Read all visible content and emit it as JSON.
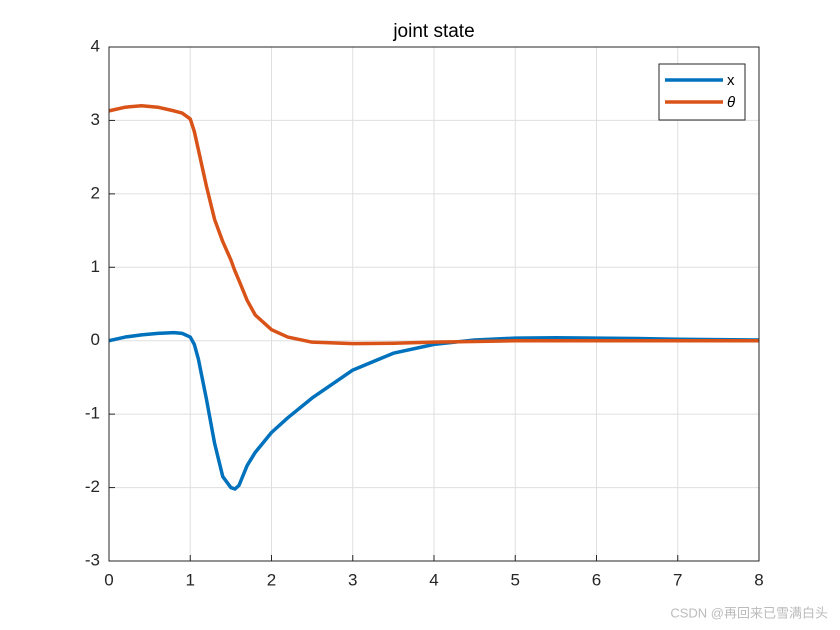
{
  "chart_data": {
    "type": "line",
    "title": "joint state",
    "x": [
      0,
      0.2,
      0.4,
      0.6,
      0.8,
      0.9,
      1.0,
      1.05,
      1.1,
      1.2,
      1.3,
      1.4,
      1.5,
      1.55,
      1.6,
      1.7,
      1.8,
      2.0,
      2.2,
      2.5,
      3,
      3.5,
      4,
      4.5,
      5,
      5.5,
      6,
      6.5,
      7,
      7.5,
      8
    ],
    "series": [
      {
        "name": "x",
        "color": "#0072BD",
        "values": [
          0,
          0.05,
          0.08,
          0.1,
          0.11,
          0.1,
          0.05,
          -0.05,
          -0.25,
          -0.8,
          -1.4,
          -1.85,
          -2.0,
          -2.02,
          -1.97,
          -1.7,
          -1.52,
          -1.25,
          -1.05,
          -0.78,
          -0.4,
          -0.17,
          -0.05,
          0.01,
          0.035,
          0.04,
          0.035,
          0.03,
          0.02,
          0.015,
          0.01
        ]
      },
      {
        "name": "θ",
        "color": "#D95319",
        "values": [
          3.13,
          3.18,
          3.2,
          3.18,
          3.13,
          3.1,
          3.02,
          2.85,
          2.6,
          2.1,
          1.65,
          1.35,
          1.1,
          0.95,
          0.82,
          0.55,
          0.35,
          0.15,
          0.05,
          -0.02,
          -0.04,
          -0.035,
          -0.02,
          -0.01,
          0,
          0,
          0,
          0,
          0,
          0,
          0
        ]
      }
    ],
    "xlim": [
      0,
      8
    ],
    "xticks": [
      0,
      1,
      2,
      3,
      4,
      5,
      6,
      7,
      8
    ],
    "ylim": [
      -3,
      4
    ],
    "yticks": [
      -3,
      -2,
      -1,
      0,
      1,
      2,
      3,
      4
    ],
    "grid": true,
    "legend": "upper-right",
    "watermark": "CSDN @再回来已雪满白头"
  }
}
